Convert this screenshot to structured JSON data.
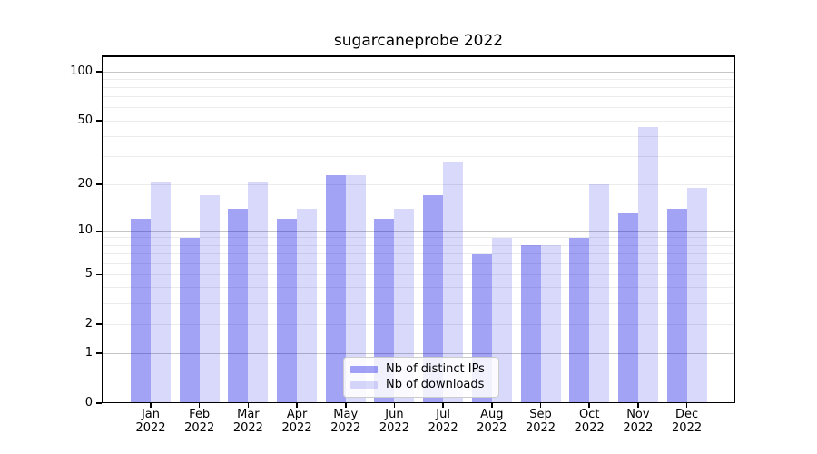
{
  "chart_data": {
    "type": "bar",
    "title": "sugarcaneprobe 2022",
    "categories": [
      {
        "month": "Jan",
        "year": "2022"
      },
      {
        "month": "Feb",
        "year": "2022"
      },
      {
        "month": "Mar",
        "year": "2022"
      },
      {
        "month": "Apr",
        "year": "2022"
      },
      {
        "month": "May",
        "year": "2022"
      },
      {
        "month": "Jun",
        "year": "2022"
      },
      {
        "month": "Jul",
        "year": "2022"
      },
      {
        "month": "Aug",
        "year": "2022"
      },
      {
        "month": "Sep",
        "year": "2022"
      },
      {
        "month": "Oct",
        "year": "2022"
      },
      {
        "month": "Nov",
        "year": "2022"
      },
      {
        "month": "Dec",
        "year": "2022"
      }
    ],
    "series": [
      {
        "name": "Nb of distinct IPs",
        "values": [
          12,
          9,
          14,
          12,
          23,
          12,
          17,
          7,
          8,
          9,
          13,
          14
        ],
        "color": "rgba(0,0,230,0.36)"
      },
      {
        "name": "Nb of downloads",
        "values": [
          21,
          17,
          21,
          14,
          23,
          14,
          28,
          9,
          8,
          20,
          46,
          19
        ],
        "color": "rgba(0,0,230,0.15)"
      }
    ],
    "yscale": "log1p",
    "ylim": [
      0,
      127
    ],
    "yticks": [
      0,
      1,
      2,
      5,
      10,
      20,
      50,
      100
    ],
    "major_gridlines": [
      1,
      10,
      100
    ],
    "minor_gridlines": [
      2,
      3,
      4,
      5,
      6,
      7,
      8,
      9,
      20,
      30,
      40,
      50,
      60,
      70,
      80,
      90
    ],
    "grid": true,
    "legend_position": "lower center inside plot",
    "xlabel": "",
    "ylabel": ""
  },
  "colors": {
    "bar_distinct_ips": "rgba(0,0,230,0.36)",
    "bar_downloads": "rgba(0,0,230,0.15)",
    "major_grid": "#c6c6c6",
    "minor_grid": "#ececec",
    "spine": "#000000",
    "legend_border": "#cccccc",
    "background": "#ffffff"
  }
}
